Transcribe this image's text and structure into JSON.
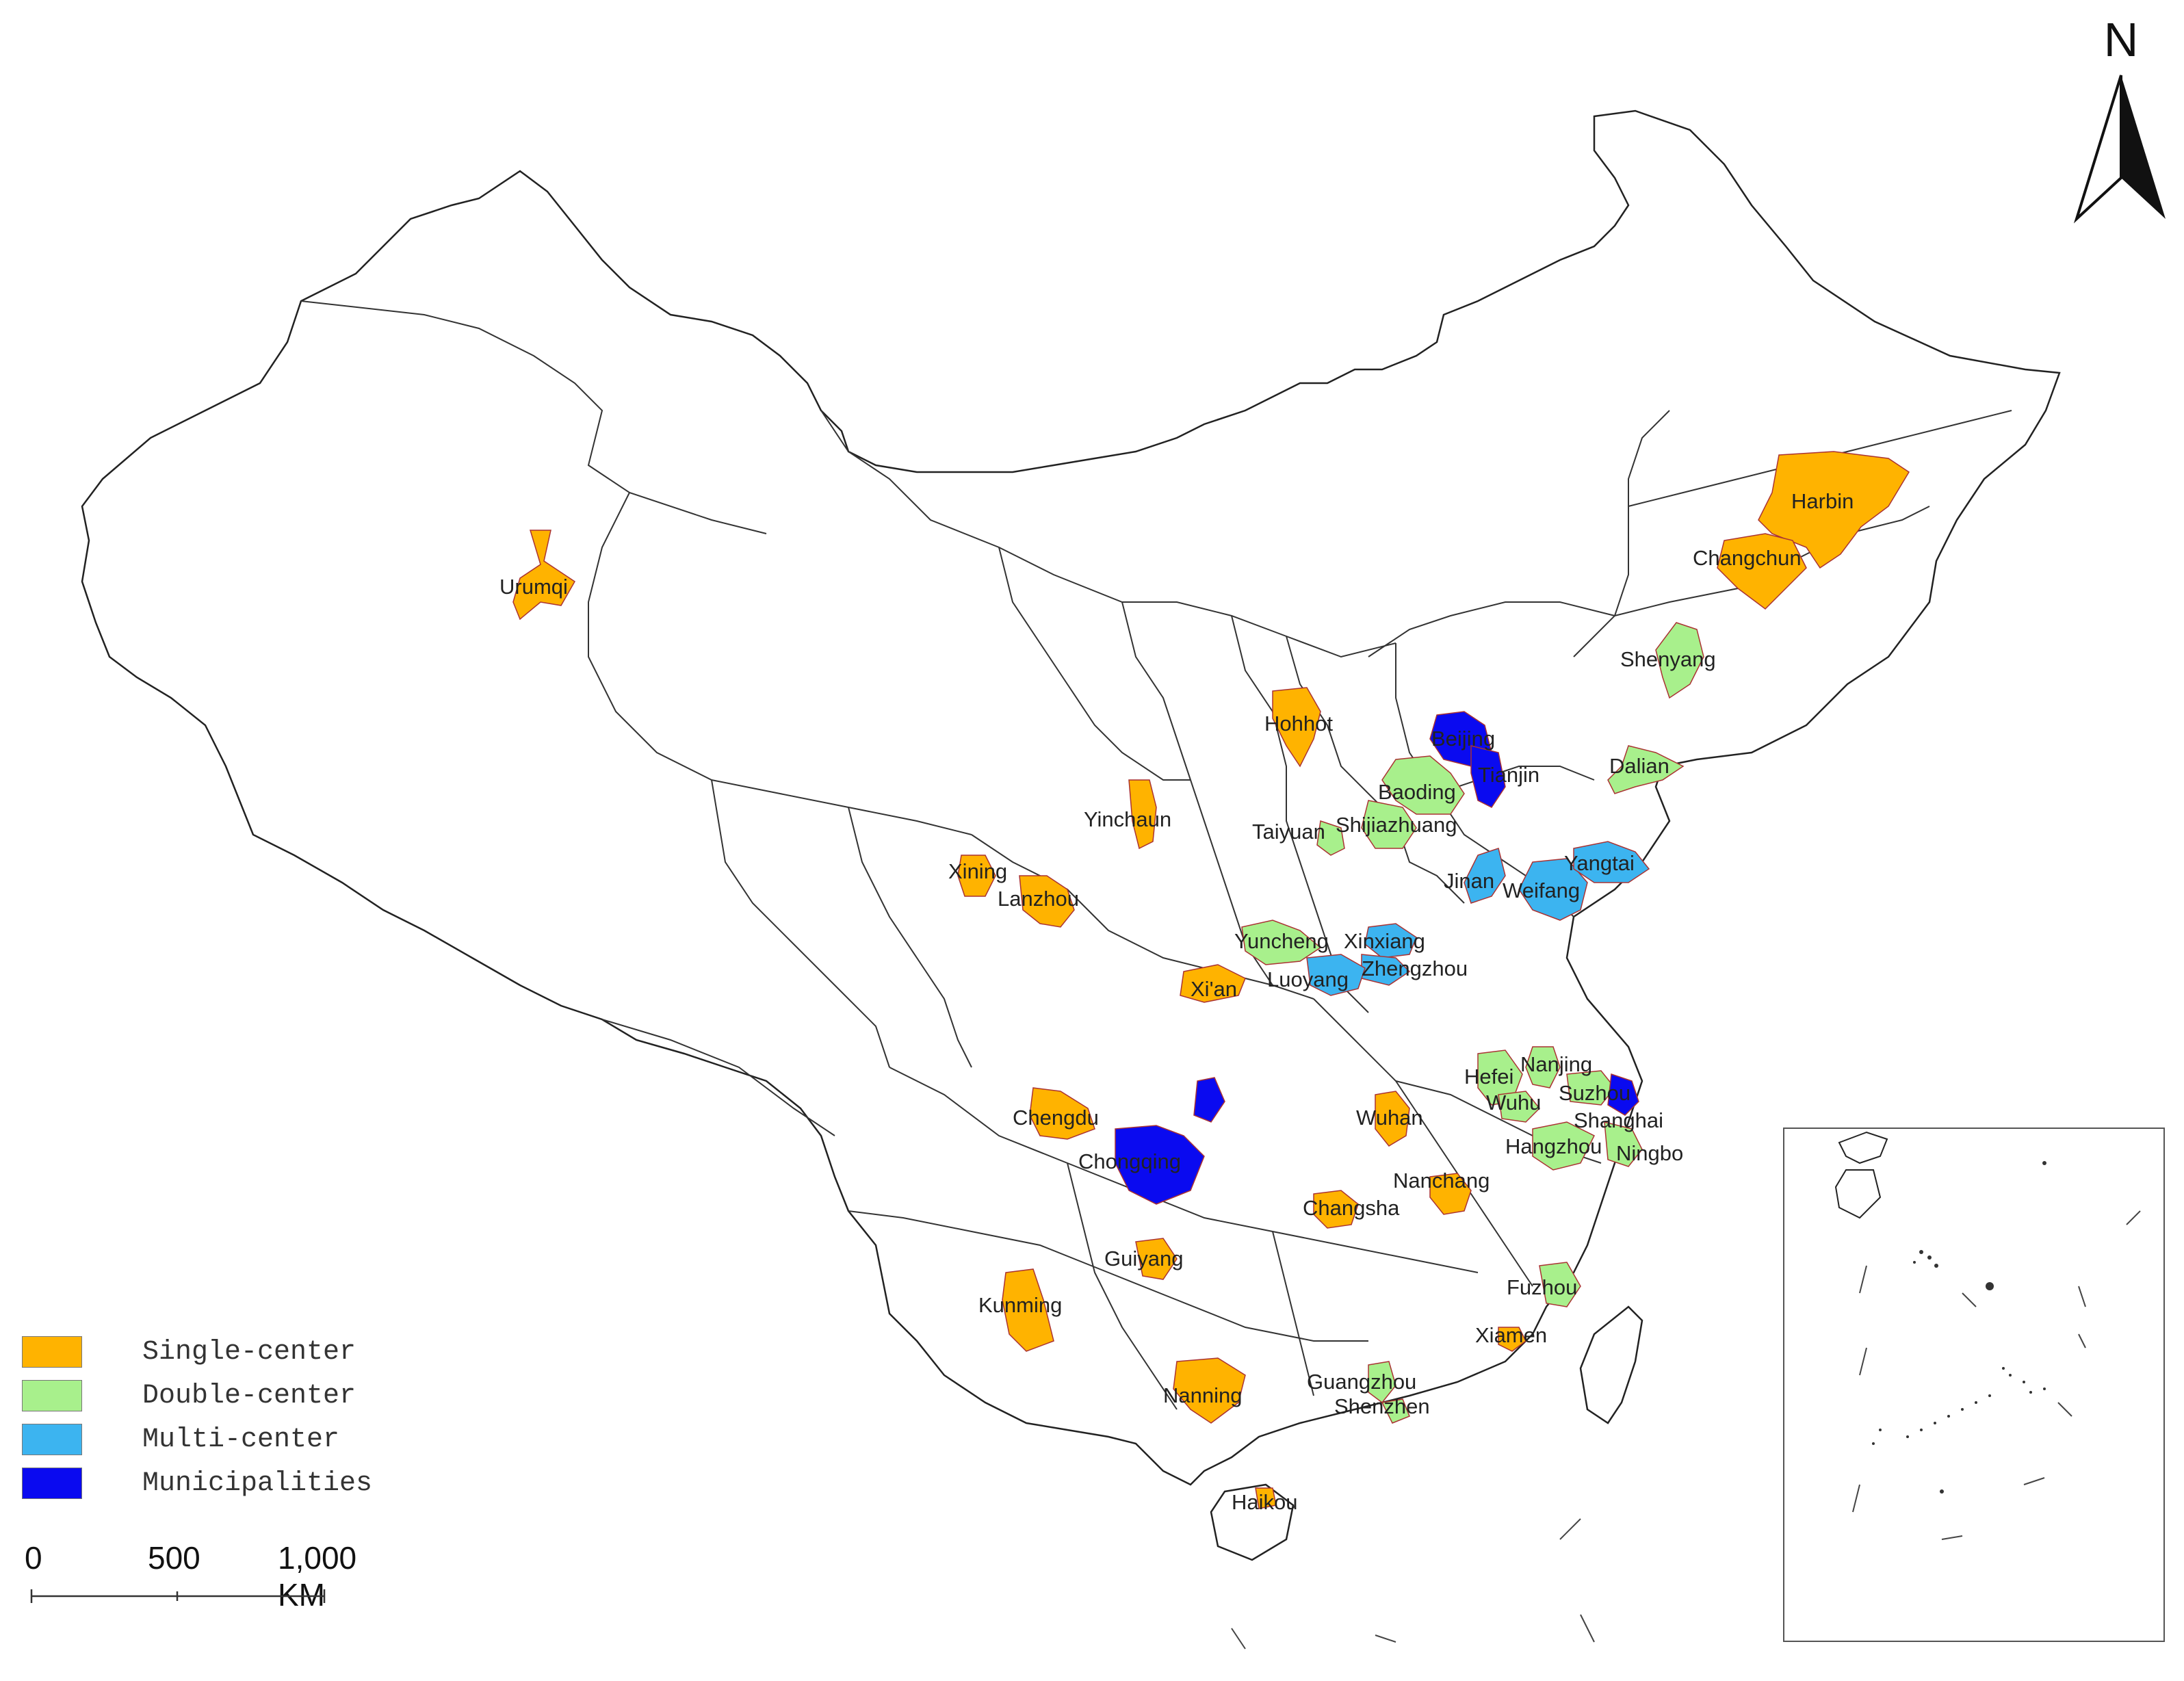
{
  "north_arrow": {
    "label": "N"
  },
  "legend": [
    {
      "label": "Single-center",
      "color": "#FFB300"
    },
    {
      "label": "Double-center",
      "color": "#A8F08C"
    },
    {
      "label": "Multi-center",
      "color": "#3CB4F0"
    },
    {
      "label": "Municipalities",
      "color": "#0A0AF0"
    }
  ],
  "scale_bar": {
    "ticks": [
      "0",
      "500",
      "1,000 KM"
    ]
  },
  "cities": [
    {
      "name": "Urumqi",
      "category": "Single-center"
    },
    {
      "name": "Harbin",
      "category": "Single-center"
    },
    {
      "name": "Changchun",
      "category": "Single-center"
    },
    {
      "name": "Shenyang",
      "category": "Double-center"
    },
    {
      "name": "Hohhot",
      "category": "Single-center"
    },
    {
      "name": "Beijing",
      "category": "Municipalities"
    },
    {
      "name": "Tianjin",
      "category": "Municipalities"
    },
    {
      "name": "Dalian",
      "category": "Double-center"
    },
    {
      "name": "Baoding",
      "category": "Double-center"
    },
    {
      "name": "Yinchaun",
      "category": "Single-center"
    },
    {
      "name": "Taiyuan",
      "category": "Double-center"
    },
    {
      "name": "Shijiazhuang",
      "category": "Double-center"
    },
    {
      "name": "Yangtai",
      "category": "Multi-center"
    },
    {
      "name": "Xining",
      "category": "Single-center"
    },
    {
      "name": "Jinan",
      "category": "Multi-center"
    },
    {
      "name": "Weifang",
      "category": "Multi-center"
    },
    {
      "name": "Lanzhou",
      "category": "Single-center"
    },
    {
      "name": "Yuncheng",
      "category": "Double-center"
    },
    {
      "name": "Xinxiang",
      "category": "Multi-center"
    },
    {
      "name": "Zhengzhou",
      "category": "Multi-center"
    },
    {
      "name": "Luoyang",
      "category": "Multi-center"
    },
    {
      "name": "Xi'an",
      "category": "Single-center"
    },
    {
      "name": "Nanjing",
      "category": "Double-center"
    },
    {
      "name": "Hefei",
      "category": "Double-center"
    },
    {
      "name": "Suzhou",
      "category": "Double-center"
    },
    {
      "name": "Wuhu",
      "category": "Double-center"
    },
    {
      "name": "Chengdu",
      "category": "Single-center"
    },
    {
      "name": "Wuhan",
      "category": "Single-center"
    },
    {
      "name": "Shanghai",
      "category": "Municipalities"
    },
    {
      "name": "Hangzhou",
      "category": "Double-center"
    },
    {
      "name": "Ningbo",
      "category": "Double-center"
    },
    {
      "name": "Chongqing",
      "category": "Municipalities"
    },
    {
      "name": "Nanchang",
      "category": "Single-center"
    },
    {
      "name": "Changsha",
      "category": "Single-center"
    },
    {
      "name": "Guiyang",
      "category": "Single-center"
    },
    {
      "name": "Fuzhou",
      "category": "Double-center"
    },
    {
      "name": "Kunming",
      "category": "Single-center"
    },
    {
      "name": "Xiamen",
      "category": "Single-center"
    },
    {
      "name": "Guangzhou",
      "category": "Double-center"
    },
    {
      "name": "Nanning",
      "category": "Single-center"
    },
    {
      "name": "Shenzhen",
      "category": "Double-center"
    },
    {
      "name": "Haikou",
      "category": "Single-center"
    }
  ]
}
